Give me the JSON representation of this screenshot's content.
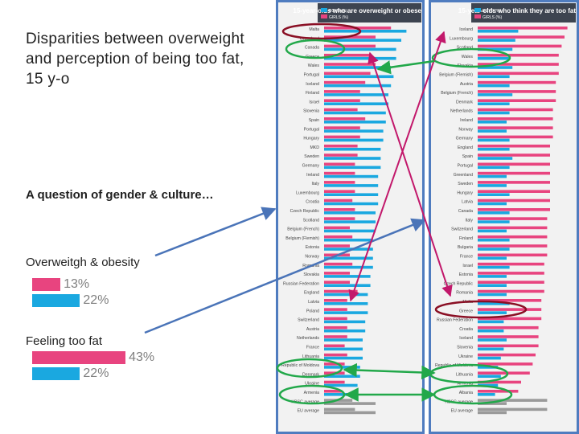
{
  "slide": {
    "title": "Disparities between overweight and perception of being too fat, 15 y-o",
    "subtitle": "A question of gender & culture…",
    "colors": {
      "girls": "#e8447f",
      "boys": "#1aa8e0",
      "panel_bg": "#f2f2f2",
      "border": "#4f7cbf",
      "arrow_blue": "#4a74b8",
      "arrow_magenta": "#c2186b",
      "green": "#22a84a",
      "dark_red": "#8a0f24",
      "header_bg": "#3d4450"
    }
  },
  "chart_data": [
    {
      "type": "bar",
      "title": "Overweitgh & obesity",
      "categories": [
        "Girls",
        "Boys"
      ],
      "values": [
        13,
        22
      ],
      "unit": "%",
      "labels": [
        "13%",
        "22%"
      ]
    },
    {
      "type": "bar",
      "title": "Feeling too fat",
      "categories": [
        "Girls",
        "Boys"
      ],
      "values": [
        43,
        22
      ],
      "unit": "%",
      "labels": [
        "43%",
        "22%"
      ]
    },
    {
      "type": "bar",
      "orientation": "horizontal",
      "title": "15-year-olds who are overweight or obese",
      "legend": [
        "BOYS (%)",
        "GIRLS (%)"
      ],
      "categories": [
        "Malta",
        "Greenland",
        "Canada",
        "Greece",
        "Wales",
        "Portugal",
        "Iceland",
        "Finland",
        "Israel",
        "Slovenia",
        "Spain",
        "Portugal",
        "Hungary",
        "MKD",
        "Sweden",
        "Germany",
        "Ireland",
        "Italy",
        "Luxembourg",
        "Croatia",
        "Czech Republic",
        "Scotland",
        "Belgium (French)",
        "Belgium (Flemish)",
        "Estonia",
        "Norway",
        "Romania",
        "Slovakia",
        "Russian Federation",
        "England",
        "Latvia",
        "Poland",
        "Switzerland",
        "Austria",
        "Netherlands",
        "France",
        "Lithuania",
        "Republic of Moldova",
        "Denmark",
        "Ukraine",
        "Armenia",
        "HBSC average",
        "EU average"
      ],
      "series": [
        {
          "name": "BOYS (%)",
          "values": [
            32,
            30,
            28,
            28,
            26,
            27,
            26,
            25,
            25,
            24,
            24,
            23,
            23,
            22,
            22,
            22,
            21,
            21,
            21,
            21,
            20,
            20,
            20,
            19,
            19,
            19,
            19,
            18,
            18,
            17,
            17,
            17,
            16,
            16,
            15,
            15,
            15,
            14,
            14,
            13,
            12,
            20,
            20
          ]
        },
        {
          "name": "GIRLS (%)",
          "values": [
            26,
            20,
            20,
            18,
            20,
            18,
            16,
            14,
            14,
            13,
            16,
            14,
            14,
            13,
            13,
            12,
            12,
            12,
            12,
            11,
            12,
            12,
            10,
            11,
            10,
            10,
            11,
            10,
            10,
            13,
            9,
            9,
            9,
            9,
            9,
            8,
            9,
            8,
            8,
            8,
            7,
            11,
            12
          ]
        }
      ]
    },
    {
      "type": "bar",
      "orientation": "horizontal",
      "title": "15-year-olds who think they are too fat",
      "legend": [
        "BOYS (%)",
        "GIRLS (%)"
      ],
      "categories": [
        "Iceland",
        "Luxembourg",
        "Scotland",
        "Wales",
        "Slovakia",
        "Belgium (Flemish)",
        "Austria",
        "Belgium (French)",
        "Denmark",
        "Netherlands",
        "Ireland",
        "Norway",
        "Germany",
        "England",
        "Spain",
        "Portugal",
        "Greenland",
        "Sweden",
        "Hungary",
        "Latvia",
        "Canada",
        "Italy",
        "Switzerland",
        "Finland",
        "Bulgaria",
        "France",
        "Israel",
        "Estonia",
        "Czech Republic",
        "Romania",
        "Malta",
        "Greece",
        "Russian Federation",
        "Croatia",
        "Iceland",
        "Slovenia",
        "Ukraine",
        "Republic of Moldova",
        "Lithuania",
        "Armenia",
        "Albania",
        "HBSC average",
        "EU average"
      ],
      "series": [
        {
          "name": "BOYS (%)",
          "values": [
            28,
            26,
            24,
            22,
            24,
            22,
            22,
            24,
            22,
            22,
            20,
            20,
            22,
            22,
            24,
            22,
            20,
            20,
            22,
            20,
            22,
            22,
            20,
            22,
            22,
            20,
            22,
            20,
            20,
            20,
            22,
            20,
            18,
            18,
            20,
            18,
            16,
            14,
            16,
            14,
            12,
            20,
            20
          ]
        },
        {
          "name": "GIRLS (%)",
          "values": [
            62,
            60,
            58,
            56,
            56,
            56,
            54,
            54,
            54,
            52,
            52,
            52,
            52,
            50,
            50,
            50,
            50,
            50,
            50,
            50,
            50,
            48,
            48,
            48,
            48,
            48,
            46,
            46,
            46,
            46,
            44,
            44,
            44,
            42,
            42,
            42,
            40,
            38,
            36,
            30,
            28,
            48,
            48
          ]
        }
      ]
    }
  ]
}
